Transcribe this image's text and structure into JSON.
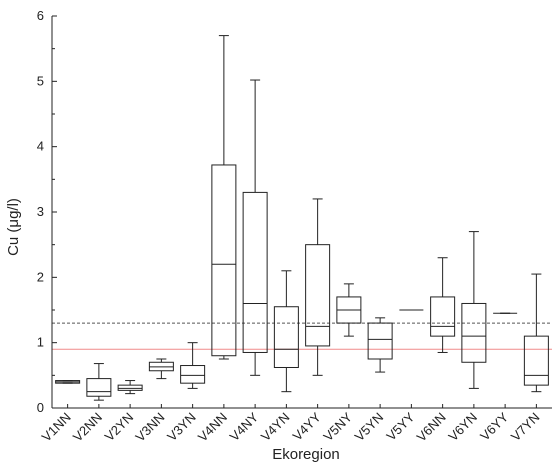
{
  "chart_data": {
    "type": "box",
    "xlabel": "Ekoregion",
    "ylabel": "Cu (μg/l)",
    "ylim": [
      0,
      6
    ],
    "yticks": [
      0,
      1,
      2,
      3,
      4,
      5,
      6
    ],
    "grid": false,
    "categories": [
      "V1NN",
      "V2NN",
      "V2YN",
      "V3NN",
      "V3YN",
      "V4NN",
      "V4NY",
      "V4YN",
      "V4YY",
      "V5NY",
      "V5YN",
      "V5YY",
      "V6NN",
      "V6YN",
      "V6YY",
      "V7YN"
    ],
    "boxes": [
      {
        "category": "V1NN",
        "whisker_low": 0.38,
        "q1": 0.38,
        "median": 0.4,
        "q3": 0.42,
        "whisker_high": 0.42
      },
      {
        "category": "V2NN",
        "whisker_low": 0.12,
        "q1": 0.18,
        "median": 0.25,
        "q3": 0.45,
        "whisker_high": 0.68
      },
      {
        "category": "V2YN",
        "whisker_low": 0.22,
        "q1": 0.27,
        "median": 0.3,
        "q3": 0.35,
        "whisker_high": 0.42
      },
      {
        "category": "V3NN",
        "whisker_low": 0.45,
        "q1": 0.57,
        "median": 0.63,
        "q3": 0.7,
        "whisker_high": 0.75
      },
      {
        "category": "V3YN",
        "whisker_low": 0.3,
        "q1": 0.38,
        "median": 0.5,
        "q3": 0.65,
        "whisker_high": 1.0
      },
      {
        "category": "V4NN",
        "whisker_low": 0.75,
        "q1": 0.8,
        "median": 2.2,
        "q3": 3.72,
        "whisker_high": 5.7
      },
      {
        "category": "V4NY",
        "whisker_low": 0.5,
        "q1": 0.85,
        "median": 1.6,
        "q3": 3.3,
        "whisker_high": 5.02
      },
      {
        "category": "V4YN",
        "whisker_low": 0.25,
        "q1": 0.62,
        "median": 0.9,
        "q3": 1.55,
        "whisker_high": 2.1
      },
      {
        "category": "V4YY",
        "whisker_low": 0.5,
        "q1": 0.95,
        "median": 1.25,
        "q3": 2.5,
        "whisker_high": 3.2
      },
      {
        "category": "V5NY",
        "whisker_low": 1.1,
        "q1": 1.3,
        "median": 1.5,
        "q3": 1.7,
        "whisker_high": 1.9
      },
      {
        "category": "V5YN",
        "whisker_low": 0.55,
        "q1": 0.75,
        "median": 1.05,
        "q3": 1.3,
        "whisker_high": 1.38
      },
      {
        "category": "V5YY",
        "whisker_low": 1.5,
        "q1": 1.5,
        "median": 1.5,
        "q3": 1.5,
        "whisker_high": 1.5
      },
      {
        "category": "V6NN",
        "whisker_low": 0.85,
        "q1": 1.1,
        "median": 1.25,
        "q3": 1.7,
        "whisker_high": 2.3
      },
      {
        "category": "V6YN",
        "whisker_low": 0.3,
        "q1": 0.7,
        "median": 1.1,
        "q3": 1.6,
        "whisker_high": 2.7
      },
      {
        "category": "V6YY",
        "whisker_low": 1.45,
        "q1": 1.45,
        "median": 1.45,
        "q3": 1.45,
        "whisker_high": 1.45
      },
      {
        "category": "V7YN",
        "whisker_low": 0.25,
        "q1": 0.35,
        "median": 0.5,
        "q3": 1.1,
        "whisker_high": 2.05
      }
    ],
    "reference_lines": [
      {
        "y": 1.3,
        "style": "dashed",
        "color": "#555555"
      },
      {
        "y": 0.9,
        "style": "solid",
        "color": "#f08a8a"
      }
    ],
    "colors": {
      "box": "#222222",
      "axis": "#222222"
    }
  }
}
